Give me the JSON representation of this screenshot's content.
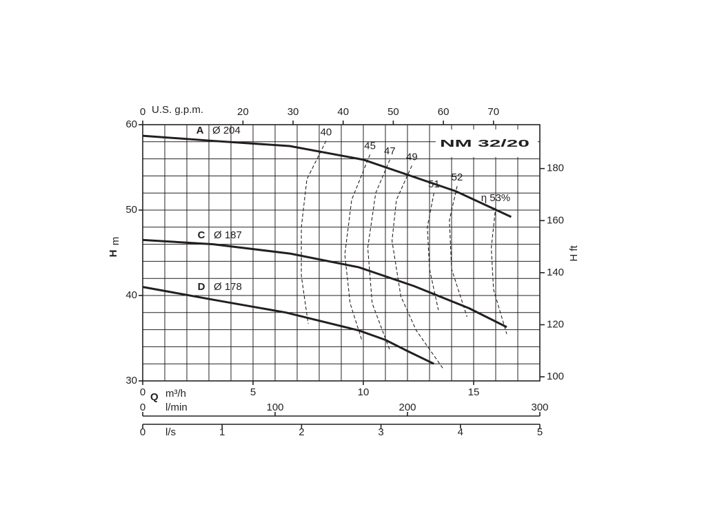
{
  "chart_data": {
    "type": "line",
    "title": "NM 32/20",
    "x_label": "Q",
    "x_unit": "m³/h",
    "xlim": [
      0,
      18
    ],
    "xticks": [
      0,
      5,
      10,
      15
    ],
    "xgrid": [
      0,
      1,
      2,
      3,
      4,
      5,
      6,
      7,
      8,
      9,
      10,
      11,
      12,
      13,
      14,
      15,
      16,
      17,
      18
    ],
    "y_label": "H",
    "y_unit": "m",
    "ylim": [
      30,
      60
    ],
    "yticks": [
      30,
      40,
      50,
      60
    ],
    "ygrid": [
      30,
      32,
      34,
      36,
      38,
      40,
      42,
      44,
      46,
      48,
      50,
      52,
      54,
      56,
      58,
      60
    ],
    "y2_label": "H ft",
    "y2lim": [
      98.43,
      196.85
    ],
    "y2ticks": [
      100,
      120,
      140,
      160,
      180
    ],
    "top_axis": {
      "label": "U.S. g.p.m.",
      "lim": [
        0,
        79.25
      ],
      "ticks": [
        0,
        20,
        30,
        40,
        50,
        60,
        70
      ]
    },
    "bottom_axes": [
      {
        "label": "l/min",
        "lim": [
          0,
          300
        ],
        "ticks": [
          0,
          100,
          200,
          300
        ]
      },
      {
        "label": "l/s",
        "lim": [
          0,
          5
        ],
        "ticks": [
          0,
          1,
          2,
          3,
          4,
          5
        ]
      }
    ],
    "series": [
      {
        "name": "A",
        "label": "Ø 204",
        "color": "#231f20",
        "x": [
          0,
          3.2,
          6.66,
          10,
          14.2,
          16.7
        ],
        "values": [
          58.7,
          58.1,
          57.5,
          55.9,
          52.2,
          49.2
        ]
      },
      {
        "name": "C",
        "label": "Ø 187",
        "color": "#231f20",
        "x": [
          0,
          3.2,
          6.7,
          9.8,
          12.3,
          14.8,
          16.5
        ],
        "values": [
          46.5,
          46.0,
          44.9,
          43.3,
          41.1,
          38.5,
          36.3
        ]
      },
      {
        "name": "D",
        "label": "Ø 178",
        "color": "#231f20",
        "x": [
          0,
          3.2,
          6.5,
          9.8,
          11,
          12,
          13.2
        ],
        "values": [
          41.0,
          39.5,
          38.0,
          35.9,
          34.8,
          33.5,
          32.0
        ]
      }
    ],
    "efficiency_curves": [
      {
        "name": "40",
        "x": [
          8.31,
          7.44,
          7.19,
          7.19,
          7.5
        ],
        "values": [
          58.1,
          53.6,
          48.0,
          42.3,
          36.7
        ]
      },
      {
        "name": "45",
        "x": [
          10.3,
          9.47,
          9.16,
          9.4,
          9.94
        ],
        "values": [
          56.5,
          51.2,
          44.8,
          39.1,
          34.7
        ]
      },
      {
        "name": "47",
        "x": [
          11.2,
          10.56,
          10.2,
          10.4,
          11.2
        ],
        "values": [
          55.9,
          52.0,
          45.6,
          39.1,
          33.6
        ]
      },
      {
        "name": "49",
        "x": [
          12.2,
          11.5,
          11.3,
          11.7,
          12.4,
          13.6
        ],
        "values": [
          55.2,
          51.2,
          46.4,
          39.9,
          35.9,
          31.5
        ]
      },
      {
        "name": "51",
        "x": [
          13.2,
          12.9,
          13.0,
          13.4
        ],
        "values": [
          52.0,
          48.0,
          43.1,
          38.3
        ]
      },
      {
        "name": "52",
        "x": [
          14.25,
          13.9,
          14.0,
          14.7
        ],
        "values": [
          52.8,
          48.8,
          43.1,
          37.5
        ]
      },
      {
        "name": "η 53%",
        "x": [
          16.0,
          15.8,
          15.9,
          16.5
        ],
        "values": [
          50.4,
          45.6,
          40.7,
          35.5
        ]
      }
    ]
  }
}
